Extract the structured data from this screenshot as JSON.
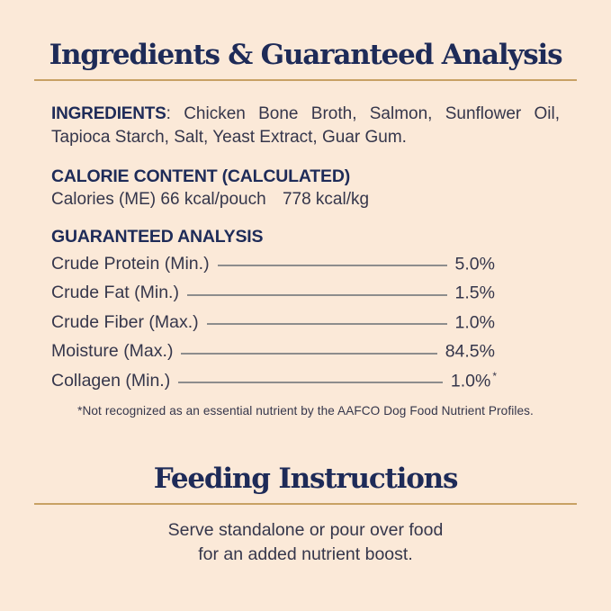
{
  "page": {
    "background_color": "#fbe9d8",
    "accent_navy": "#1e2b58",
    "body_text_color": "#35364b",
    "gold_rule_color": "#c8a164",
    "leader_line_color": "#8d8d8d"
  },
  "ingredients_section": {
    "title": "Ingredients & Guaranteed Analysis",
    "ingredients_label": "INGREDIENTS",
    "ingredients_line1_rest": ": Chicken Bone Broth, Salmon, Sunflower Oil,",
    "ingredients_line2": "Tapioca Starch, Salt, Yeast Extract, Guar Gum.",
    "calorie_heading": "CALORIE CONTENT (CALCULATED)",
    "calorie_text_part1": "Calories (ME) 66 kcal/pouch",
    "calorie_text_part2": "778 kcal/kg",
    "analysis_heading": "GUARANTEED ANALYSIS",
    "analysis_rows": [
      {
        "label": "Crude Protein (Min.)",
        "value": "5.0%",
        "marker": ""
      },
      {
        "label": "Crude Fat (Min.)",
        "value": "1.5%",
        "marker": ""
      },
      {
        "label": "Crude Fiber (Max.)",
        "value": "1.0%",
        "marker": ""
      },
      {
        "label": "Moisture (Max.)",
        "value": "84.5%",
        "marker": ""
      },
      {
        "label": "Collagen (Min.)",
        "value": "1.0%",
        "marker": "*"
      }
    ],
    "footnote": "*Not recognized as an essential nutrient by the AAFCO Dog Food Nutrient Profiles."
  },
  "feeding_section": {
    "title": "Feeding Instructions",
    "line1": "Serve standalone or pour over food",
    "line2": "for an added nutrient boost."
  }
}
